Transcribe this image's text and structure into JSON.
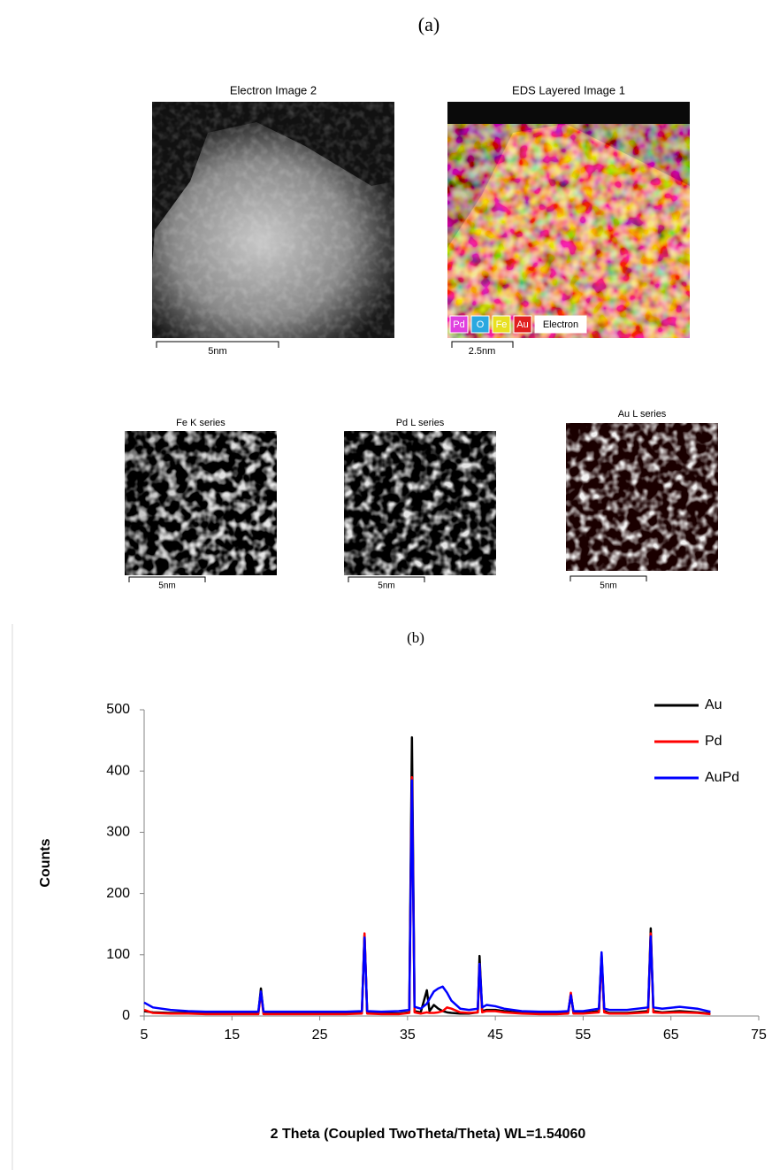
{
  "figure": {
    "panel_a_label": "(a)",
    "panel_b_label": "(b)",
    "images": [
      {
        "title": "Electron Image 2",
        "scale_label": "5nm"
      },
      {
        "title": "EDS Layered Image 1",
        "scale_label": "2.5nm"
      },
      {
        "title": "Fe K series",
        "scale_label": "5nm"
      },
      {
        "title": "Pd L series",
        "scale_label": "5nm"
      },
      {
        "title": "Au L series",
        "scale_label": "5nm"
      }
    ],
    "eds_legend": [
      "Pd",
      "O",
      "Fe",
      "Au",
      "Electron"
    ]
  },
  "chart_data": {
    "type": "line",
    "xlabel": "2 Theta (Coupled TwoTheta/Theta) WL=1.54060",
    "ylabel": "Counts",
    "x": [
      5,
      6,
      8,
      10,
      12,
      14,
      16,
      18,
      18.3,
      18.6,
      20,
      22,
      24,
      26,
      28,
      29.8,
      30.1,
      30.4,
      32,
      34,
      35.2,
      35.5,
      35.8,
      36.5,
      37.2,
      37.5,
      38,
      38.5,
      39,
      39.5,
      40,
      41,
      42,
      43,
      43.2,
      43.5,
      44,
      45,
      46,
      48,
      50,
      52,
      53.3,
      53.6,
      53.9,
      55,
      56.8,
      57.1,
      57.4,
      58,
      60,
      62.4,
      62.7,
      63,
      64,
      66,
      68,
      69.5
    ],
    "series": [
      {
        "name": "Au",
        "color": "#000000",
        "values": [
          8,
          6,
          5,
          5,
          4,
          4,
          4,
          4,
          45,
          4,
          4,
          4,
          4,
          4,
          4,
          5,
          133,
          5,
          4,
          4,
          6,
          455,
          8,
          6,
          42,
          8,
          18,
          12,
          8,
          6,
          5,
          4,
          4,
          6,
          98,
          8,
          10,
          10,
          8,
          5,
          4,
          4,
          5,
          36,
          5,
          5,
          8,
          100,
          8,
          5,
          5,
          8,
          143,
          8,
          6,
          8,
          6,
          4
        ]
      },
      {
        "name": "Pd",
        "color": "#ff0000",
        "values": [
          10,
          5,
          4,
          4,
          3,
          3,
          3,
          3,
          38,
          3,
          3,
          3,
          3,
          3,
          3,
          4,
          135,
          4,
          3,
          3,
          5,
          390,
          6,
          4,
          6,
          5,
          5,
          6,
          8,
          14,
          12,
          6,
          5,
          6,
          85,
          6,
          8,
          8,
          6,
          4,
          3,
          3,
          4,
          38,
          4,
          4,
          6,
          95,
          6,
          4,
          4,
          6,
          135,
          6,
          5,
          6,
          5,
          3
        ]
      },
      {
        "name": "AuPd",
        "color": "#0000ff",
        "values": [
          22,
          14,
          10,
          8,
          7,
          7,
          7,
          7,
          40,
          7,
          7,
          7,
          7,
          7,
          7,
          8,
          128,
          8,
          7,
          8,
          10,
          385,
          15,
          12,
          20,
          28,
          40,
          45,
          48,
          38,
          25,
          12,
          10,
          12,
          85,
          14,
          18,
          16,
          12,
          8,
          7,
          7,
          8,
          34,
          8,
          8,
          12,
          104,
          12,
          10,
          10,
          14,
          130,
          14,
          12,
          15,
          12,
          7
        ]
      }
    ],
    "xlim": [
      5,
      75
    ],
    "xticks": [
      5,
      15,
      25,
      35,
      45,
      55,
      65,
      75
    ],
    "ylim": [
      0,
      500
    ],
    "yticks": [
      0,
      100,
      200,
      300,
      400,
      500
    ],
    "grid": false,
    "legend": "top-right"
  }
}
